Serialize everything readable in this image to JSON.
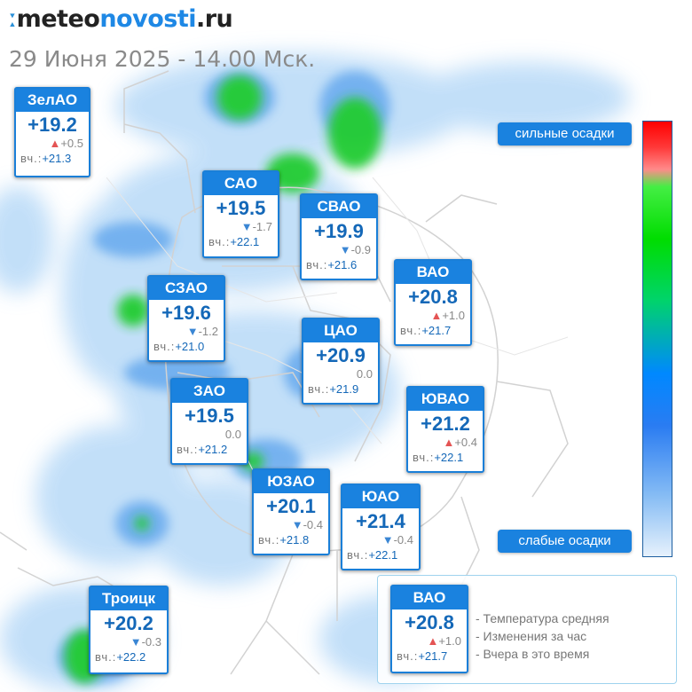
{
  "logo": {
    "mark": "ː",
    "part1": "meteo",
    "part2": "novosti",
    "part3": ".ru"
  },
  "subtitle": "29 Июня 2025 - 14.00 Мск.",
  "scale": {
    "top_label": "сильные осадки",
    "bottom_label": "слабые осадки"
  },
  "districts": [
    {
      "name": "ЗелАО",
      "temp": "+19.2",
      "trend": "up",
      "delta": "+0.5",
      "yest_label": "вч.:",
      "yest": "+21.3"
    },
    {
      "name": "САО",
      "temp": "+19.5",
      "trend": "down",
      "delta": "-1.7",
      "yest_label": "вч.:",
      "yest": "+22.1"
    },
    {
      "name": "СВАО",
      "temp": "+19.9",
      "trend": "down",
      "delta": "-0.9",
      "yest_label": "вч.:",
      "yest": "+21.6"
    },
    {
      "name": "ВАО",
      "temp": "+20.8",
      "trend": "up",
      "delta": "+1.0",
      "yest_label": "вч.:",
      "yest": "+21.7"
    },
    {
      "name": "СЗАО",
      "temp": "+19.6",
      "trend": "down",
      "delta": "-1.2",
      "yest_label": "вч.:",
      "yest": "+21.0"
    },
    {
      "name": "ЦАО",
      "temp": "+20.9",
      "trend": "none",
      "delta": "0.0",
      "yest_label": "вч.:",
      "yest": "+21.9"
    },
    {
      "name": "ЗАО",
      "temp": "+19.5",
      "trend": "none",
      "delta": "0.0",
      "yest_label": "вч.:",
      "yest": "+21.2"
    },
    {
      "name": "ЮВАО",
      "temp": "+21.2",
      "trend": "up",
      "delta": "+0.4",
      "yest_label": "вч.:",
      "yest": "+22.1"
    },
    {
      "name": "ЮЗАО",
      "temp": "+20.1",
      "trend": "down",
      "delta": "-0.4",
      "yest_label": "вч.:",
      "yest": "+21.8"
    },
    {
      "name": "ЮАО",
      "temp": "+21.4",
      "trend": "down",
      "delta": "-0.4",
      "yest_label": "вч.:",
      "yest": "+22.1"
    },
    {
      "name": "Троицк",
      "temp": "+20.2",
      "trend": "down",
      "delta": "-0.3",
      "yest_label": "вч.:",
      "yest": "+22.2"
    }
  ],
  "legend": {
    "sample": {
      "name": "ВАО",
      "temp": "+20.8",
      "trend": "up",
      "delta": "+1.0",
      "yest_label": "вч.:",
      "yest": "+21.7"
    },
    "items": [
      "- Температура средняя",
      "- Изменения за час",
      "- Вчера в это время"
    ]
  },
  "colors": {
    "accent": "#1a82df",
    "temp_text": "#1468b8",
    "up_arrow": "#e45454",
    "down_arrow": "#3a86d4",
    "legend_border": "#9fd3ee"
  }
}
